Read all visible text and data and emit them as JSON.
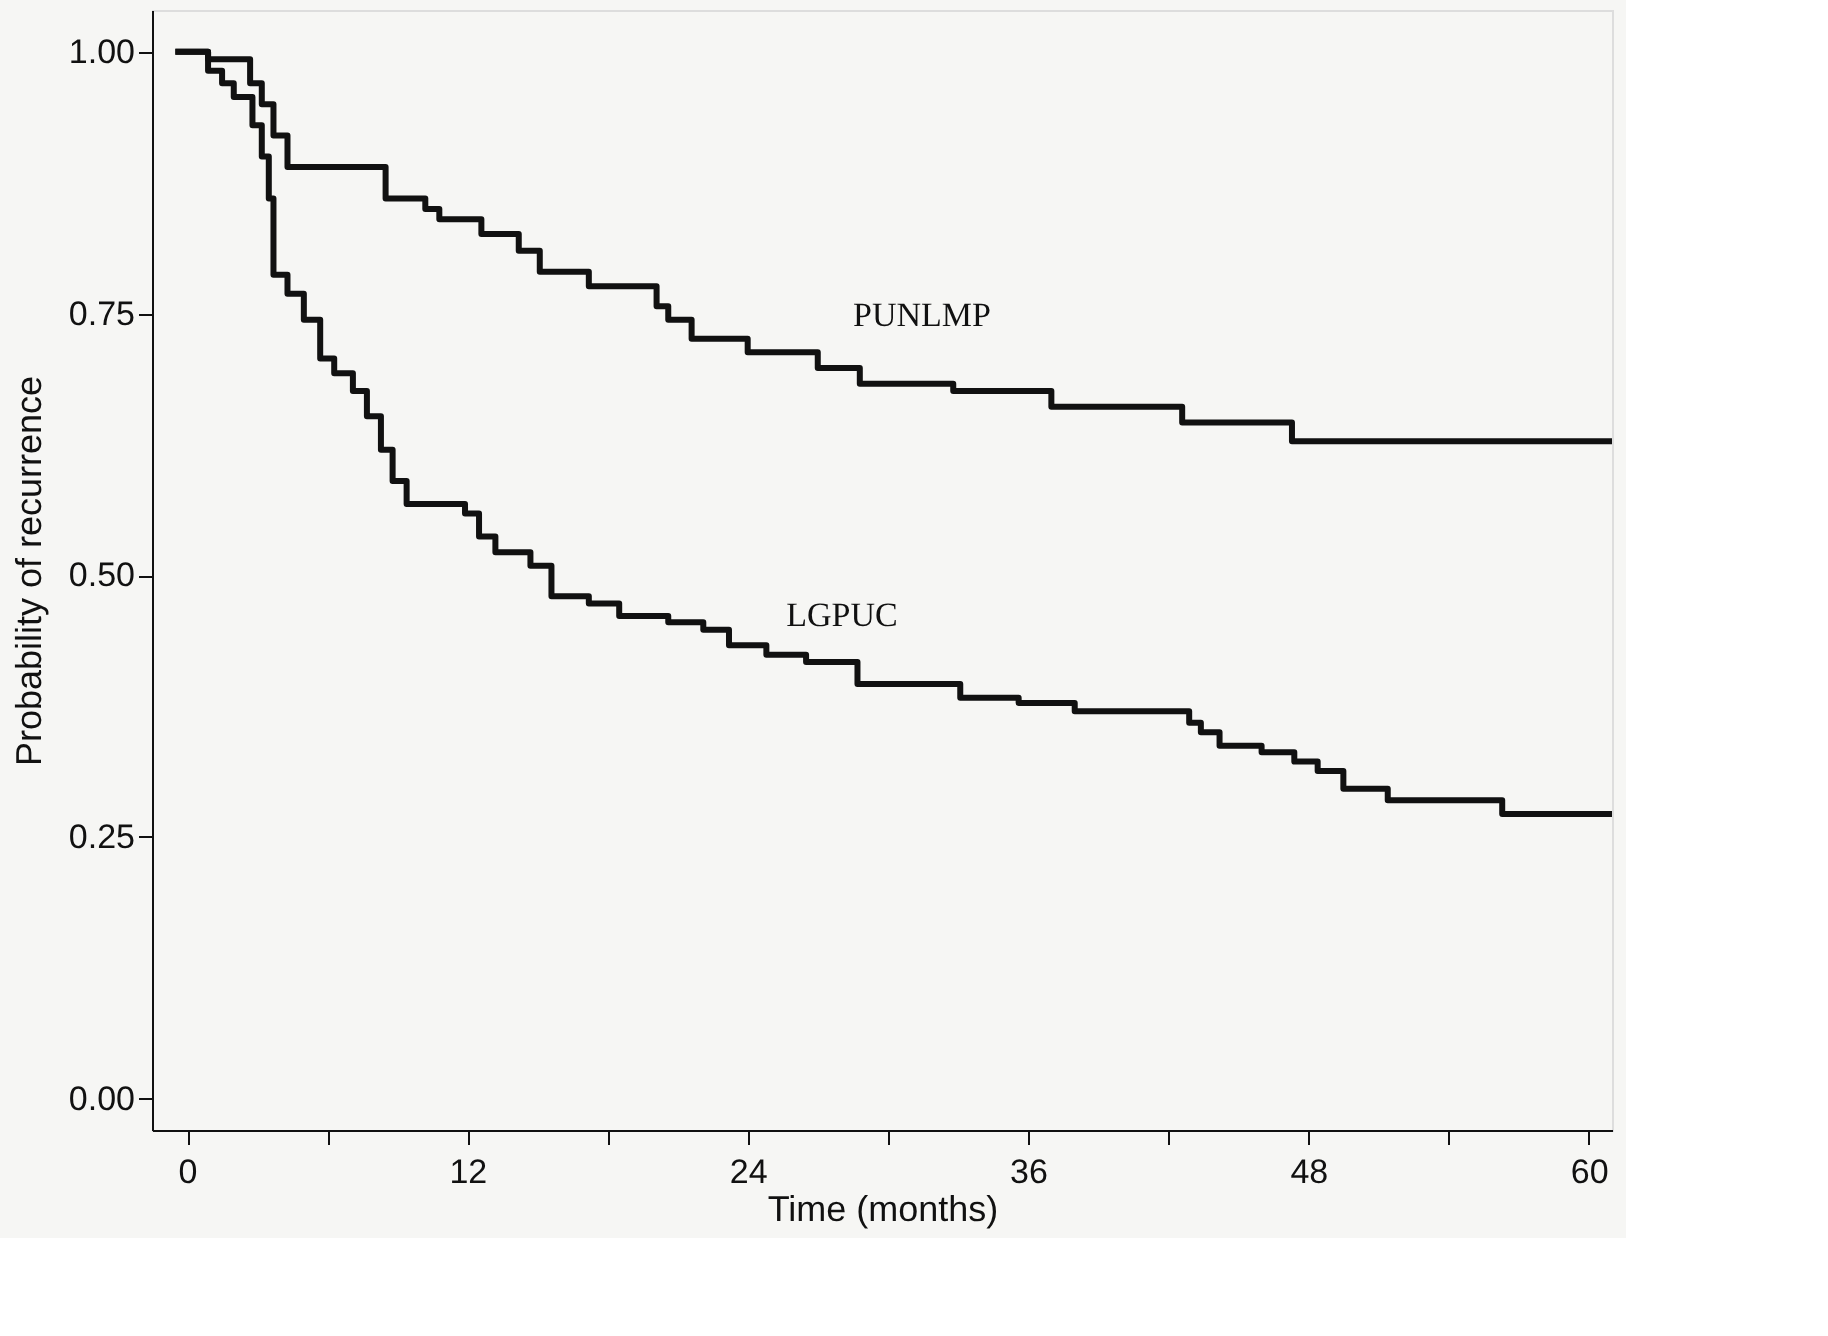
{
  "chart_data": {
    "type": "step",
    "xlabel": "Time (months)",
    "ylabel": "Probability of recurrence",
    "xlim": [
      -1.5,
      61
    ],
    "ylim": [
      -0.03,
      1.04
    ],
    "xticks": [
      0,
      {
        "value": 6,
        "label": null
      },
      12,
      {
        "value": 18,
        "label": null
      },
      24,
      {
        "value": 30,
        "label": null
      },
      36,
      {
        "value": 42,
        "label": null
      },
      48,
      {
        "value": 54,
        "label": null
      },
      60
    ],
    "yticks": [
      {
        "value": 0,
        "label": "0.00"
      },
      {
        "value": 0.25,
        "label": "0.25"
      },
      {
        "value": 0.5,
        "label": "0.50"
      },
      {
        "value": 0.75,
        "label": "0.75"
      },
      {
        "value": 1,
        "label": "1.00"
      }
    ],
    "marker": "none",
    "line_style": "solid",
    "series": [
      {
        "name": "PUNLMP",
        "color": "#111111",
        "x": [
          -0.5,
          0.9,
          2.7,
          3.2,
          3.7,
          4.3,
          8.5,
          10.2,
          10.8,
          12.6,
          14.2,
          15.1,
          17.2,
          20.1,
          20.6,
          21.6,
          24.0,
          27.0,
          28.8,
          32.8,
          37.0,
          42.6,
          47.3,
          61
        ],
        "values": [
          1.0,
          0.993,
          0.97,
          0.95,
          0.92,
          0.89,
          0.86,
          0.85,
          0.84,
          0.826,
          0.81,
          0.79,
          0.776,
          0.757,
          0.744,
          0.726,
          0.713,
          0.698,
          0.683,
          0.676,
          0.661,
          0.646,
          0.628,
          0.628
        ]
      },
      {
        "name": "LGPUC",
        "color": "#111111",
        "x": [
          -0.5,
          0.9,
          1.5,
          2.0,
          2.8,
          3.2,
          3.5,
          3.7,
          4.3,
          5.0,
          5.7,
          6.3,
          7.1,
          7.7,
          8.3,
          8.8,
          9.4,
          11.9,
          12.5,
          13.2,
          14.7,
          15.6,
          17.2,
          18.5,
          20.6,
          22.1,
          23.2,
          24.8,
          26.5,
          28.7,
          33.1,
          35.6,
          38.0,
          42.9,
          43.4,
          44.2,
          46.0,
          47.4,
          48.4,
          49.5,
          51.4,
          56.3,
          61
        ],
        "values": [
          1.0,
          0.982,
          0.97,
          0.957,
          0.93,
          0.9,
          0.86,
          0.787,
          0.769,
          0.744,
          0.707,
          0.693,
          0.676,
          0.652,
          0.62,
          0.59,
          0.568,
          0.559,
          0.537,
          0.522,
          0.509,
          0.48,
          0.473,
          0.461,
          0.455,
          0.448,
          0.433,
          0.424,
          0.417,
          0.396,
          0.383,
          0.378,
          0.37,
          0.359,
          0.35,
          0.337,
          0.331,
          0.322,
          0.313,
          0.296,
          0.285,
          0.272,
          0.272
        ]
      }
    ]
  }
}
